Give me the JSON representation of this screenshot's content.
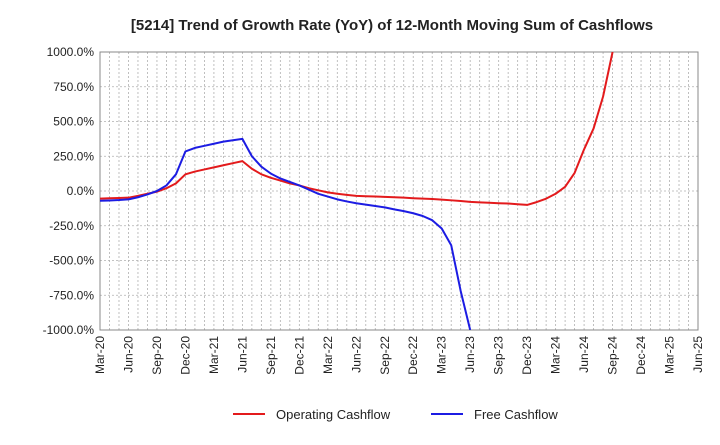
{
  "chart_data": {
    "type": "line",
    "title": "[5214]  Trend of Growth Rate (YoY) of 12-Month Moving Sum of Cashflows",
    "xlabel": "",
    "ylabel": "",
    "ylim": [
      -1000,
      1000
    ],
    "yticks": [
      1000,
      750,
      500,
      250,
      0,
      -250,
      -500,
      -750,
      -1000
    ],
    "ytick_labels": [
      "1000.0%",
      "750.0%",
      "500.0%",
      "250.0%",
      "0.0%",
      "-250.0%",
      "-500.0%",
      "-750.0%",
      "-1000.0%"
    ],
    "xticks": [
      "Mar-20",
      "Jun-20",
      "Sep-20",
      "Dec-20",
      "Mar-21",
      "Jun-21",
      "Sep-21",
      "Dec-21",
      "Mar-22",
      "Jun-22",
      "Sep-22",
      "Dec-22",
      "Mar-23",
      "Jun-23",
      "Sep-23",
      "Dec-23",
      "Mar-24",
      "Jun-24",
      "Sep-24",
      "Dec-24",
      "Mar-25",
      "Jun-25"
    ],
    "x_months": [
      "Mar-20",
      "Apr-20",
      "May-20",
      "Jun-20",
      "Jul-20",
      "Aug-20",
      "Sep-20",
      "Oct-20",
      "Nov-20",
      "Dec-20",
      "Jan-21",
      "Feb-21",
      "Mar-21",
      "Apr-21",
      "May-21",
      "Jun-21",
      "Jul-21",
      "Aug-21",
      "Sep-21",
      "Oct-21",
      "Nov-21",
      "Dec-21",
      "Jan-22",
      "Feb-22",
      "Mar-22",
      "Apr-22",
      "May-22",
      "Jun-22",
      "Jul-22",
      "Aug-22",
      "Sep-22",
      "Oct-22",
      "Nov-22",
      "Dec-22",
      "Jan-23",
      "Feb-23",
      "Mar-23",
      "Apr-23",
      "May-23",
      "Jun-23",
      "Jul-23",
      "Aug-23",
      "Sep-23",
      "Oct-23",
      "Nov-23",
      "Dec-23",
      "Jan-24",
      "Feb-24",
      "Mar-24",
      "Apr-24",
      "May-24",
      "Jun-24",
      "Jul-24",
      "Aug-24",
      "Sep-24"
    ],
    "grid": true,
    "legend_position": "bottom",
    "series": [
      {
        "name": "Operating Cashflow",
        "color": "#e31a1c",
        "values": [
          -55,
          -52,
          -50,
          -48,
          -35,
          -20,
          -5,
          20,
          55,
          120,
          140,
          155,
          170,
          185,
          200,
          215,
          160,
          120,
          95,
          75,
          55,
          40,
          20,
          5,
          -10,
          -20,
          -28,
          -35,
          -38,
          -40,
          -42,
          -45,
          -48,
          -52,
          -55,
          -58,
          -62,
          -67,
          -72,
          -78,
          -82,
          -85,
          -88,
          -90,
          -95,
          -100,
          -80,
          -55,
          -20,
          30,
          130,
          300,
          450,
          680,
          1000
        ]
      },
      {
        "name": "Free Cashflow",
        "color": "#1c1ce3",
        "values": [
          -70,
          -68,
          -65,
          -60,
          -45,
          -25,
          0,
          40,
          120,
          285,
          310,
          325,
          340,
          355,
          365,
          375,
          250,
          175,
          125,
          90,
          65,
          40,
          10,
          -20,
          -40,
          -60,
          -75,
          -88,
          -98,
          -108,
          -118,
          -132,
          -145,
          -160,
          -180,
          -210,
          -270,
          -390,
          -720,
          -1000,
          null,
          null,
          null,
          null,
          null,
          null,
          null,
          null,
          null,
          null,
          null,
          null,
          null,
          null,
          null
        ]
      }
    ]
  }
}
